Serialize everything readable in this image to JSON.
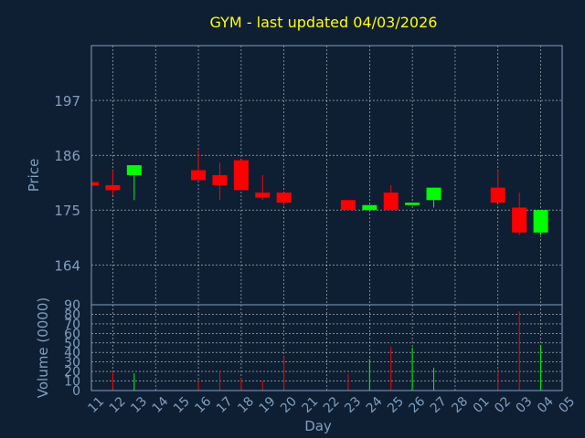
{
  "chart_data": {
    "type": "candlestick",
    "title": "GYM - last updated 04/03/2026",
    "xlabel": "Day",
    "ylabel_price": "Price",
    "ylabel_volume": "Volume (0000)",
    "price_ylim": [
      156,
      208
    ],
    "price_ticks": [
      164,
      175,
      186,
      197
    ],
    "volume_ylim": [
      0,
      90
    ],
    "volume_ticks": [
      0,
      10,
      20,
      30,
      40,
      50,
      60,
      70,
      80,
      90
    ],
    "x_tick_labels": [
      "11",
      "12",
      "13",
      "14",
      "15",
      "16",
      "17",
      "18",
      "19",
      "20",
      "21",
      "22",
      "23",
      "24",
      "25",
      "26",
      "27",
      "28",
      "01",
      "02",
      "03",
      "04",
      "05"
    ],
    "gridlines_x": [
      "12",
      "14",
      "16",
      "18",
      "20",
      "22",
      "24",
      "26",
      "28",
      "02",
      "04"
    ],
    "grid": true,
    "up_color": "#00ff00",
    "down_color": "#ff0000",
    "candles": [
      {
        "day": "11",
        "open": 180.6,
        "high": 180.6,
        "low": 179.9,
        "close": 179.9,
        "volume": 0
      },
      {
        "day": "12",
        "open": 180.0,
        "high": 183.0,
        "low": 178.0,
        "close": 179.0,
        "volume": 20
      },
      {
        "day": "13",
        "open": 182.0,
        "high": 184.0,
        "low": 177.0,
        "close": 184.0,
        "volume": 18
      },
      {
        "day": "16",
        "open": 183.0,
        "high": 187.0,
        "low": 181.0,
        "close": 181.0,
        "volume": 10
      },
      {
        "day": "17",
        "open": 182.0,
        "high": 184.5,
        "low": 177.0,
        "close": 180.0,
        "volume": 21
      },
      {
        "day": "18",
        "open": 185.0,
        "high": 185.0,
        "low": 179.0,
        "close": 179.0,
        "volume": 13
      },
      {
        "day": "19",
        "open": 178.5,
        "high": 182.0,
        "low": 177.0,
        "close": 177.5,
        "volume": 10
      },
      {
        "day": "20",
        "open": 178.5,
        "high": 178.5,
        "low": 176.0,
        "close": 176.5,
        "volume": 36
      },
      {
        "day": "23",
        "open": 177.0,
        "high": 177.0,
        "low": 175.0,
        "close": 175.0,
        "volume": 17
      },
      {
        "day": "24",
        "open": 175.0,
        "high": 176.0,
        "low": 174.8,
        "close": 176.0,
        "volume": 33
      },
      {
        "day": "25",
        "open": 178.5,
        "high": 180.0,
        "low": 175.0,
        "close": 175.0,
        "volume": 46
      },
      {
        "day": "26",
        "open": 176.0,
        "high": 176.5,
        "low": 176.0,
        "close": 176.5,
        "volume": 45
      },
      {
        "day": "27",
        "open": 177.0,
        "high": 179.5,
        "low": 175.5,
        "close": 179.5,
        "volume": 24
      },
      {
        "day": "02",
        "open": 179.5,
        "high": 183.0,
        "low": 176.5,
        "close": 176.5,
        "volume": 22
      },
      {
        "day": "03",
        "open": 175.5,
        "high": 178.5,
        "low": 170.0,
        "close": 170.5,
        "volume": 83
      },
      {
        "day": "04",
        "open": 170.5,
        "high": 175.0,
        "low": 170.0,
        "close": 175.0,
        "volume": 48
      }
    ]
  }
}
